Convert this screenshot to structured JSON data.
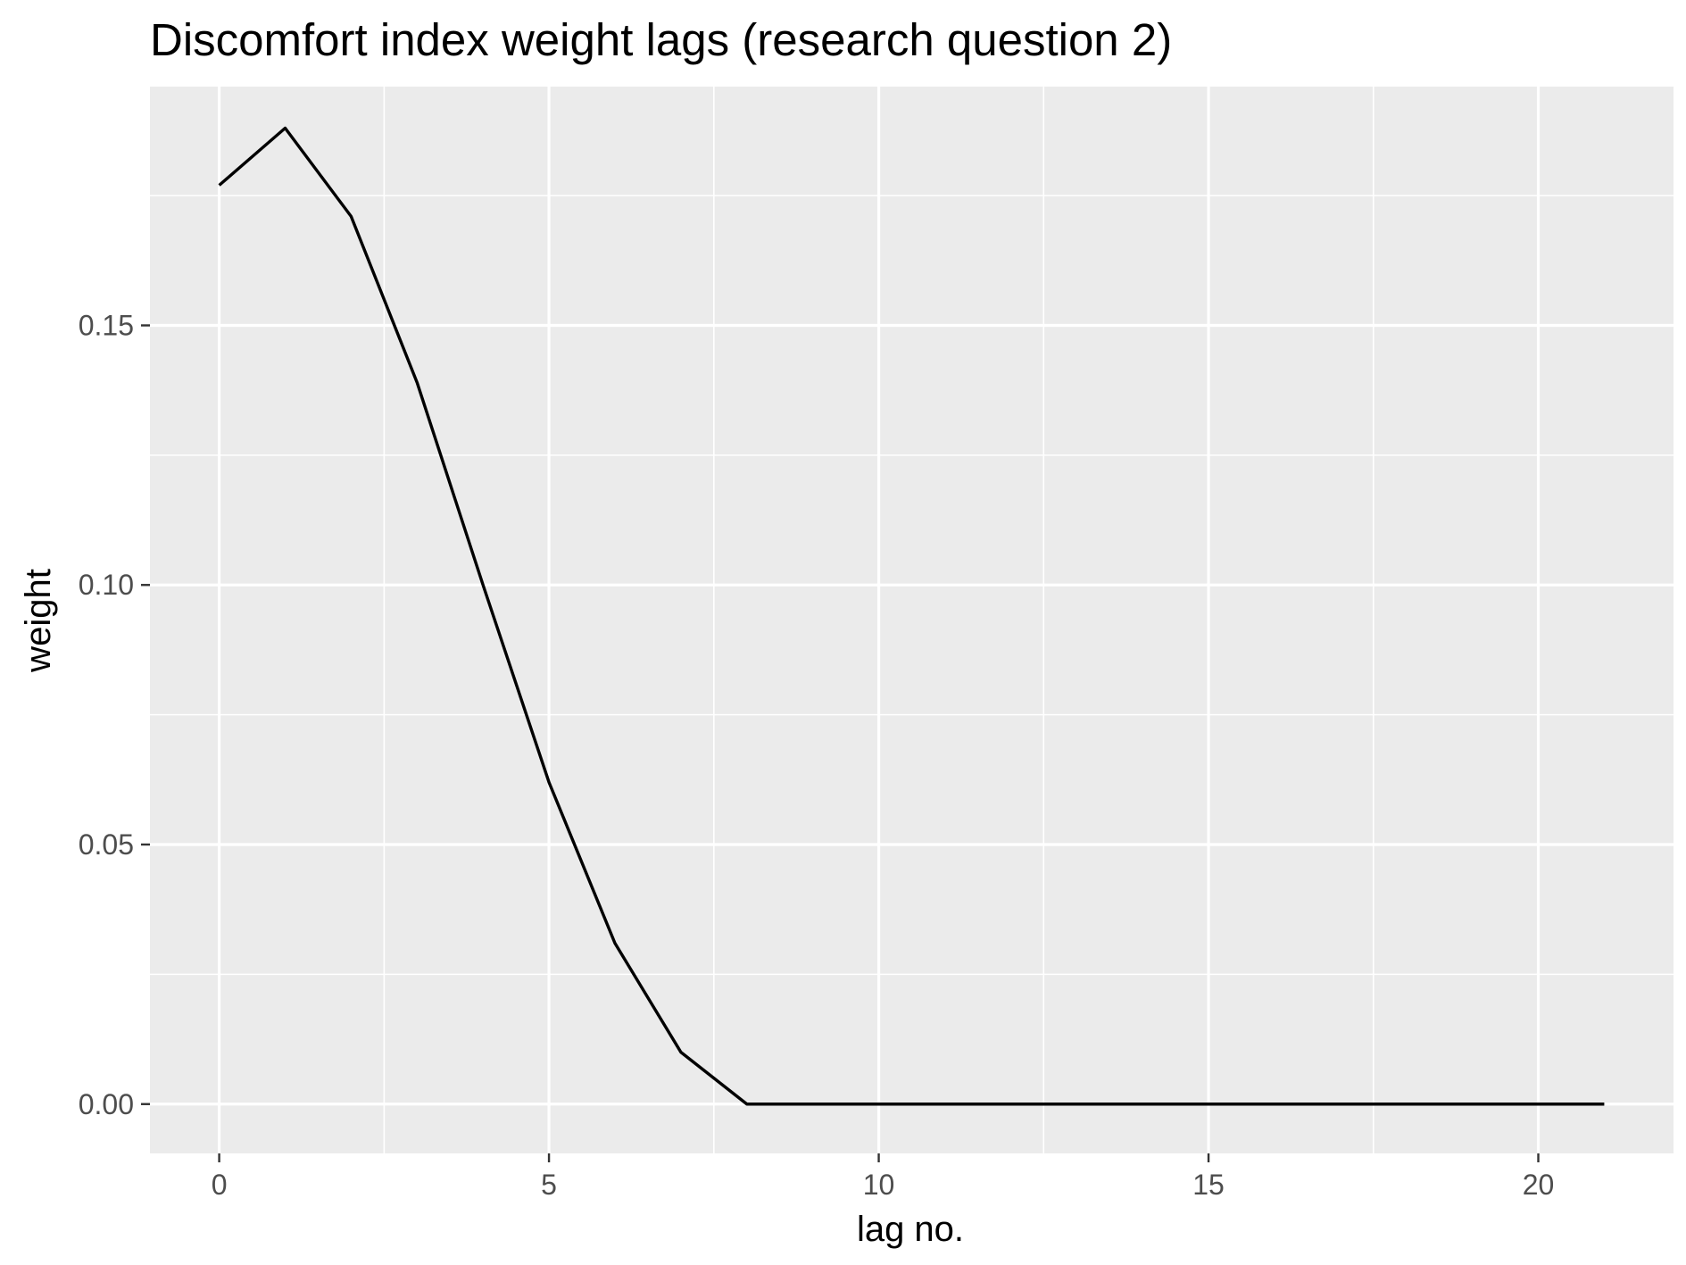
{
  "chart_data": {
    "type": "line",
    "title": "Discomfort index weight lags (research question 2)",
    "xlabel": "lag no.",
    "ylabel": "weight",
    "xlim": [
      -1.05,
      22.05
    ],
    "ylim": [
      -0.0095,
      0.196
    ],
    "x_ticks": [
      0,
      5,
      10,
      15,
      20
    ],
    "x_tick_labels": [
      "0",
      "5",
      "10",
      "15",
      "20"
    ],
    "y_ticks": [
      0.0,
      0.05,
      0.1,
      0.15
    ],
    "y_tick_labels": [
      "0.00",
      "0.05",
      "0.10",
      "0.15"
    ],
    "grid": true,
    "legend": "none",
    "colors": {
      "panel_background": "#ebebeb",
      "grid": "#ffffff",
      "line": "#000000",
      "tick_text": "#4d4d4d",
      "tick_mark": "#333333"
    },
    "series": [
      {
        "x": [
          0,
          1,
          2,
          3,
          4,
          5,
          6,
          7,
          8,
          9,
          10,
          11,
          12,
          13,
          14,
          15,
          16,
          17,
          18,
          19,
          20,
          21
        ],
        "values": [
          0.177,
          0.188,
          0.171,
          0.139,
          0.1,
          0.062,
          0.031,
          0.01,
          0.0,
          0.0,
          0.0,
          0.0,
          0.0,
          0.0,
          0.0,
          0.0,
          0.0,
          0.0,
          0.0,
          0.0,
          0.0,
          0.0
        ]
      }
    ]
  }
}
